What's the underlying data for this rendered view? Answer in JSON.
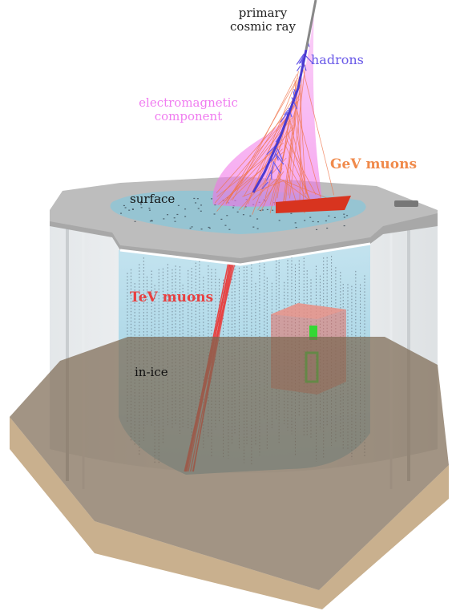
{
  "labels": {
    "primary_line1": "primary",
    "primary_line2": "cosmic ray",
    "hadrons": "hadrons",
    "em_line1": "electromagnetic",
    "em_line2": "component",
    "gev_muons": "GeV muons",
    "surface": "surface",
    "tev_muons": "TeV muons",
    "in_ice": "in-ice"
  },
  "colors": {
    "primary": "#222222",
    "hadrons": "#6a5ae8",
    "em": "#f07cf0",
    "gev_muons": "#f08a4b",
    "tev_muons": "#e84040",
    "ice": "#9fd4e8",
    "bedrock": "#a08a6c",
    "surface_plate": "#bdbdbd",
    "green_module": "#34d834"
  }
}
